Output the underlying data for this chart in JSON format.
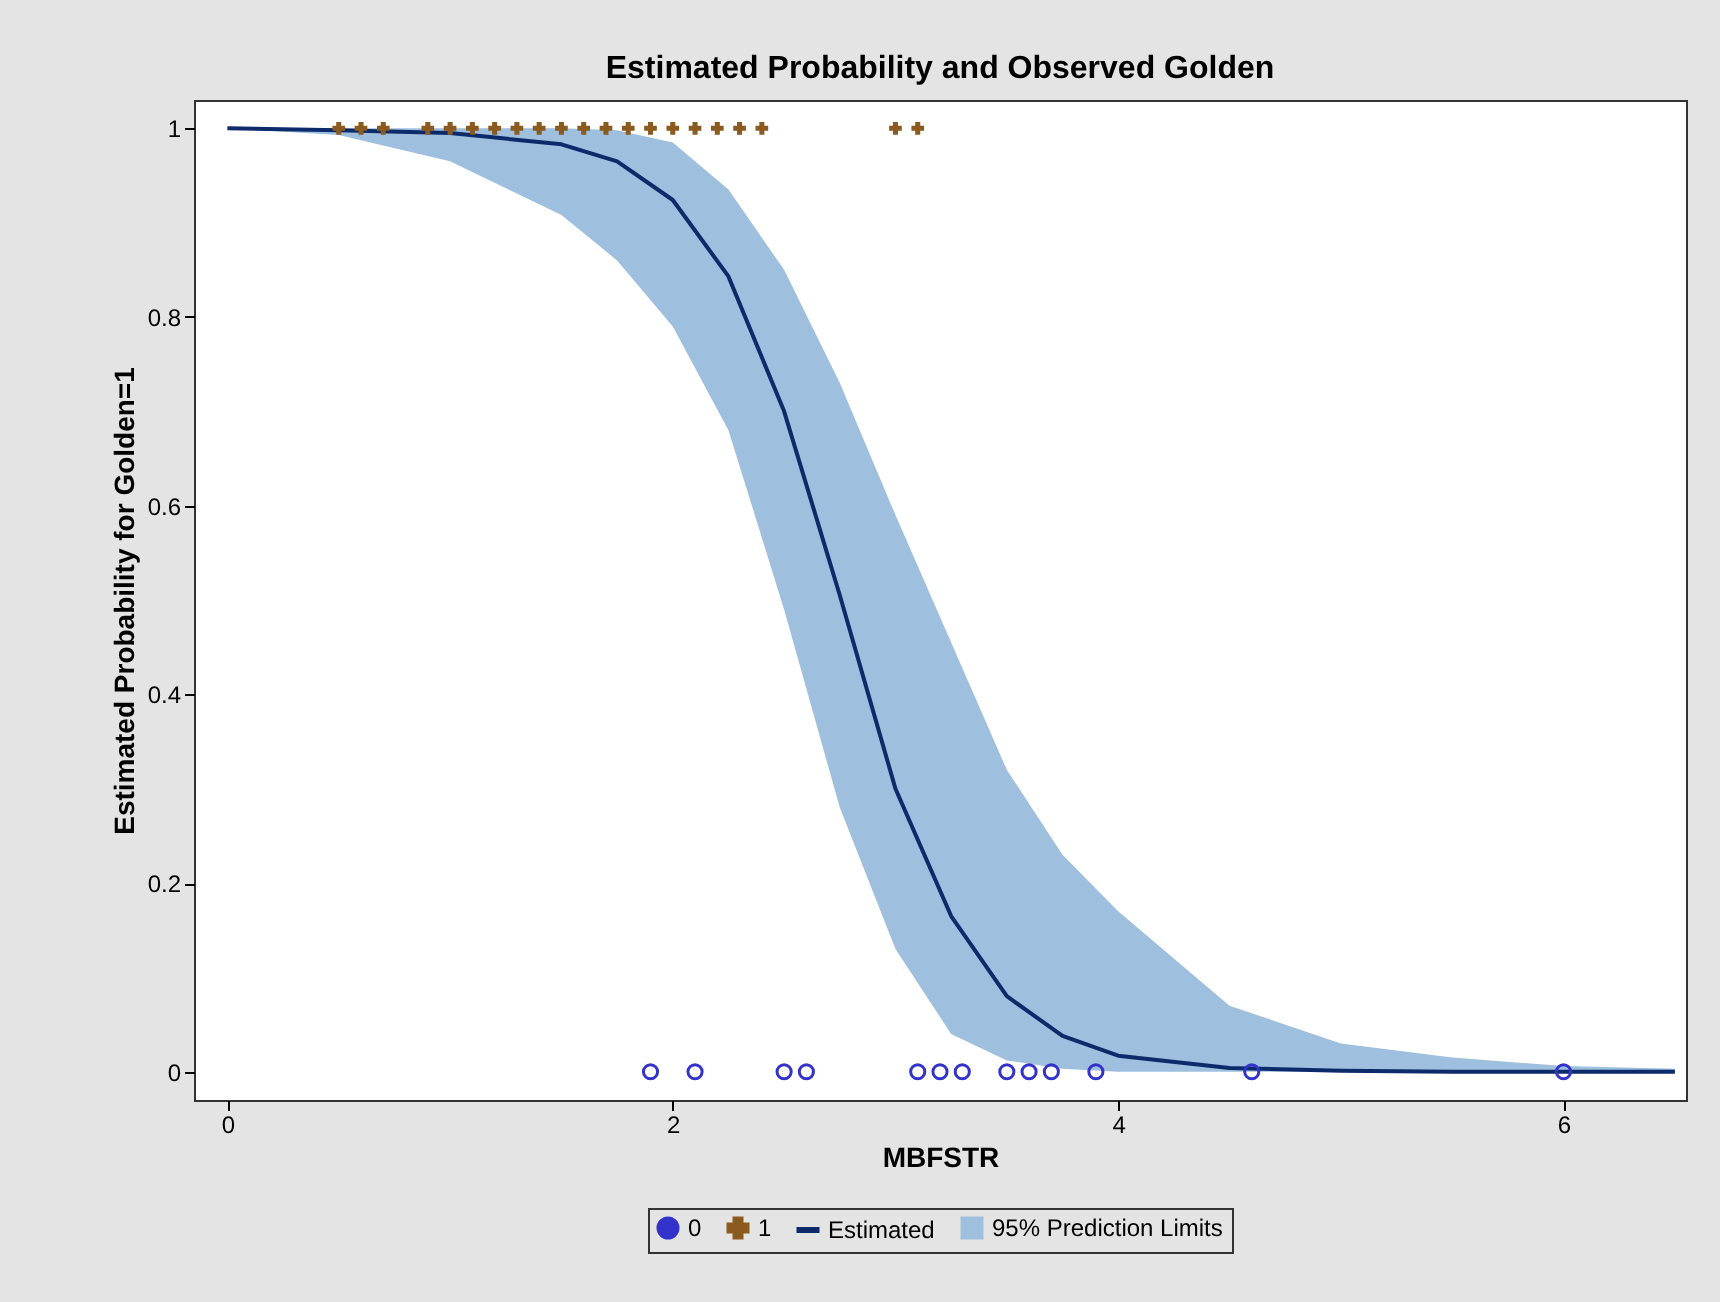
{
  "chart_data": {
    "type": "line",
    "title": "Estimated Probability and Observed Golden",
    "xlabel": "MBFSTR",
    "ylabel": "Estimated Probability for Golden=1",
    "xlim": [
      -0.15,
      6.55
    ],
    "xticks": [
      {
        "value": 0,
        "label": "0"
      },
      {
        "value": 2,
        "label": "2"
      },
      {
        "value": 4,
        "label": "4"
      },
      {
        "value": 6,
        "label": "6"
      }
    ],
    "ylim": [
      -0.03,
      1.03
    ],
    "yticks": [
      {
        "value": 0,
        "label": "0"
      },
      0.2,
      0.4,
      0.6,
      0.8,
      {
        "value": 1,
        "label": "1"
      }
    ],
    "grid": false,
    "legend": "bottom",
    "annotations": [
      "95% Prediction Limits"
    ],
    "series": [
      {
        "name": "Estimated",
        "type": "line",
        "marker": "none",
        "line_style": "solid",
        "color": "#0d2a6b",
        "x": [
          0,
          0.5,
          1.0,
          1.5,
          1.75,
          2.0,
          2.25,
          2.5,
          2.75,
          3.0,
          3.25,
          3.5,
          3.75,
          4.0,
          4.5,
          5.0,
          5.5,
          6.0,
          6.5
        ],
        "values": [
          1,
          0.998,
          0.995,
          0.983,
          0.965,
          0.924,
          0.843,
          0.7,
          0.505,
          0.3,
          0.165,
          0.08,
          0.038,
          0.017,
          0.004,
          0.001,
          0,
          0,
          0
        ],
        "lower": [
          1,
          0.993,
          0.965,
          0.908,
          0.86,
          0.79,
          0.68,
          0.49,
          0.28,
          0.13,
          0.04,
          0.012,
          0.003,
          0,
          0,
          0,
          0,
          0,
          0
        ],
        "upper": [
          1,
          1,
          1,
          1,
          0.998,
          0.985,
          0.935,
          0.85,
          0.73,
          0.59,
          0.455,
          0.32,
          0.23,
          0.17,
          0.07,
          0.03,
          0.015,
          0.006,
          0.003
        ]
      },
      {
        "name": "0",
        "type": "scatter",
        "marker": "circle",
        "color": "#3333cc",
        "x": [
          1.9,
          2.1,
          2.5,
          2.6,
          3.1,
          3.2,
          3.3,
          3.5,
          3.6,
          3.7,
          3.9,
          4.6,
          6.0
        ],
        "values": [
          0,
          0,
          0,
          0,
          0,
          0,
          0,
          0,
          0,
          0,
          0,
          0,
          0
        ]
      },
      {
        "name": "1",
        "type": "scatter",
        "marker": "cross",
        "color": "#8b5a1e",
        "x": [
          0.5,
          0.6,
          0.7,
          0.9,
          1.0,
          1.1,
          1.2,
          1.3,
          1.4,
          1.5,
          1.6,
          1.7,
          1.8,
          1.9,
          2.0,
          2.1,
          2.2,
          2.3,
          2.4,
          3.0,
          3.1
        ],
        "values": [
          1,
          1,
          1,
          1,
          1,
          1,
          1,
          1,
          1,
          1,
          1,
          1,
          1,
          1,
          1,
          1,
          1,
          1,
          1,
          1,
          1
        ]
      }
    ]
  }
}
